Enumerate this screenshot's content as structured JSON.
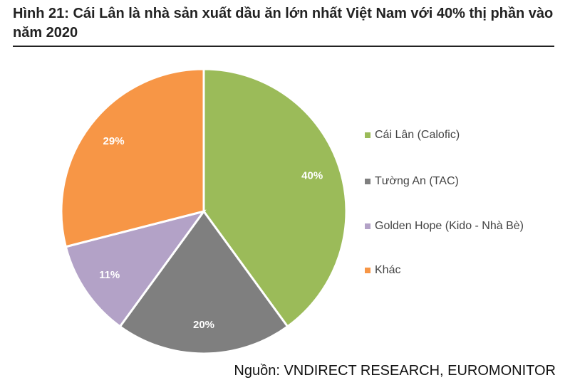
{
  "chart_data": {
    "type": "pie",
    "title": "Hình 21: Cái Lân là nhà sản xuất dầu ăn lớn nhất Việt Nam với 40% thị phần vào năm 2020",
    "categories": [
      "Cái Lân (Calofic)",
      "Tường An (TAC)",
      "Golden Hope (Kido - Nhà Bè)",
      "Khác"
    ],
    "values": [
      40,
      20,
      11,
      29
    ],
    "value_labels": [
      "40%",
      "20%",
      "11%",
      "29%"
    ],
    "colors": [
      "#9bbb59",
      "#7f7f7f",
      "#b3a2c7",
      "#f79646"
    ],
    "legend": "right",
    "source": "Nguồn: VNDIRECT RESEARCH, EUROMONITOR"
  }
}
